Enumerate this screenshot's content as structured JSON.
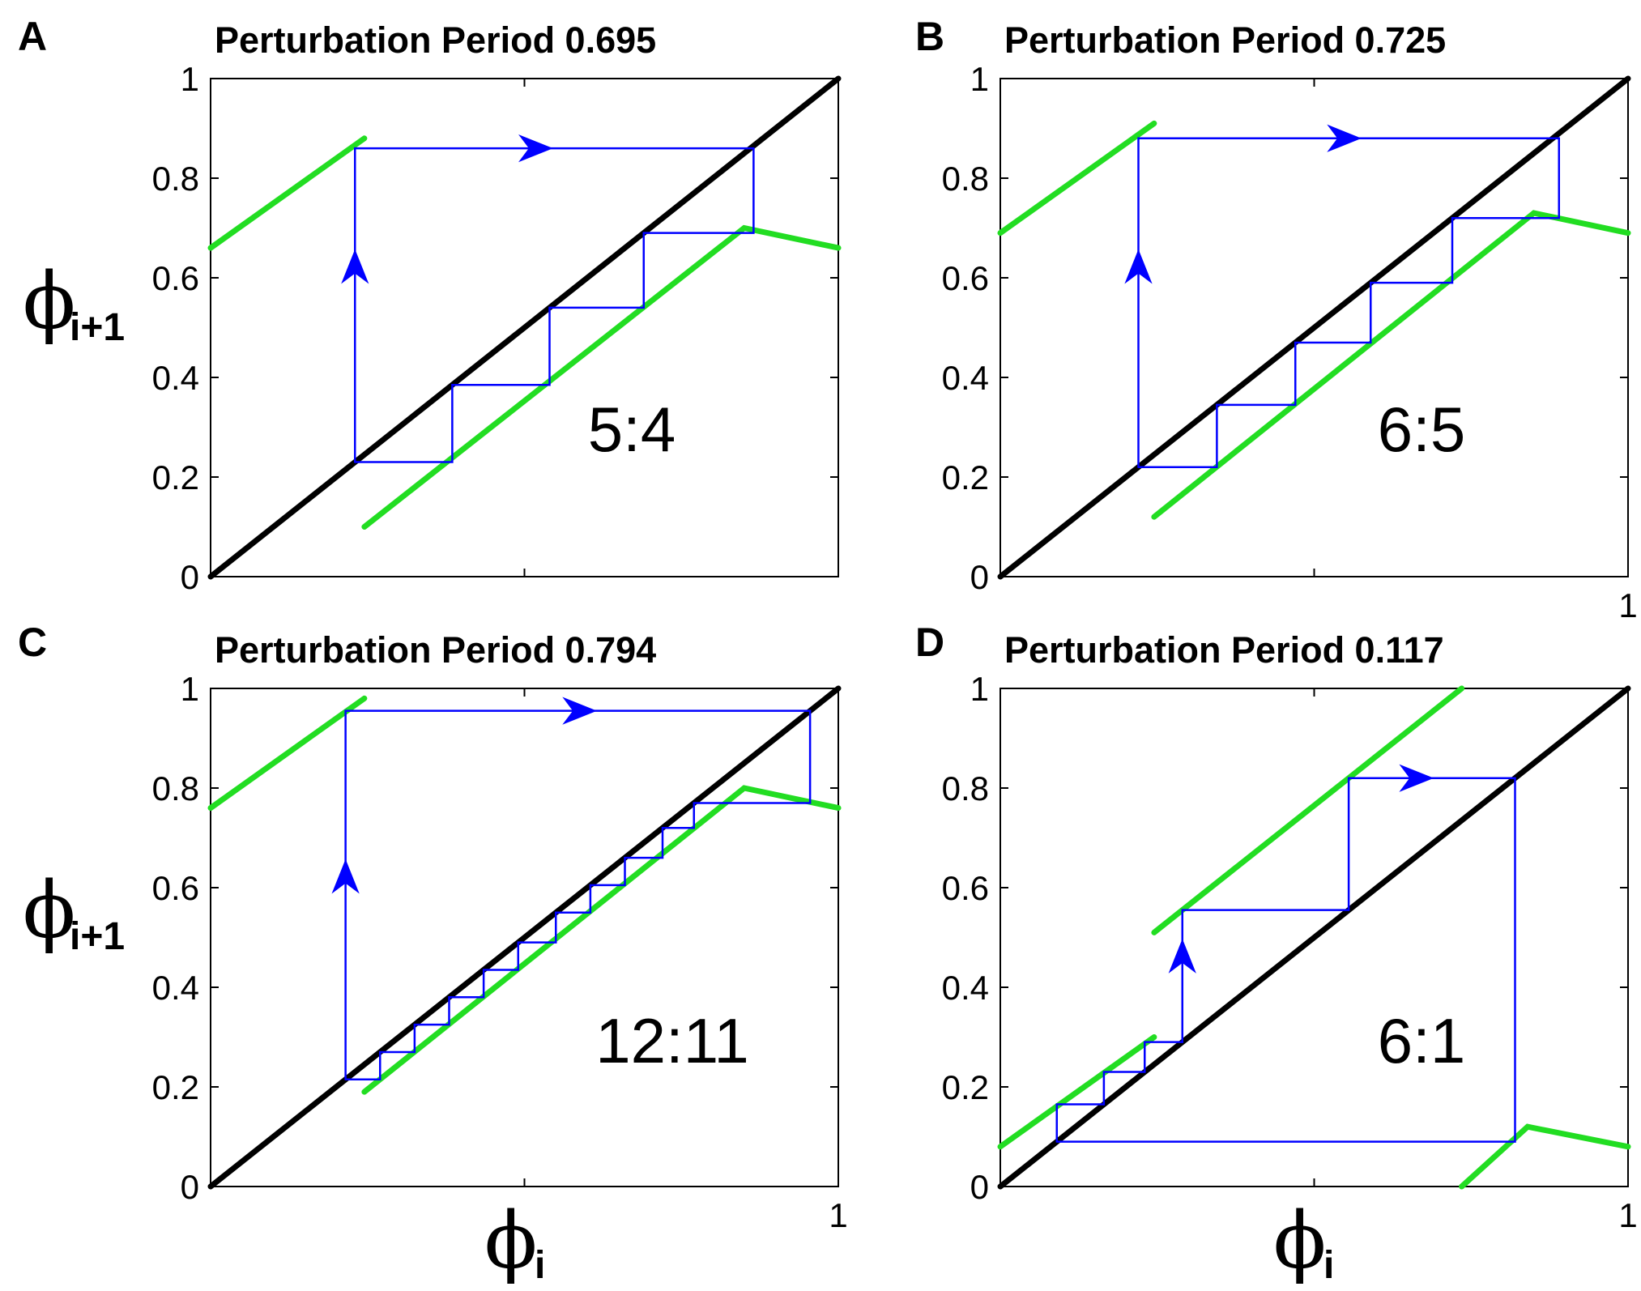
{
  "figure": {
    "ylabel_symbol": "ϕ",
    "ylabel_sub": "i+1",
    "xlabel_symbol": "ϕ",
    "xlabel_sub": "i"
  },
  "chart_data": [
    {
      "type": "line",
      "panel": "A",
      "title": "Perturbation Period 0.695",
      "ratio_label": "5:4",
      "xlim": [
        0,
        1
      ],
      "ylim": [
        0,
        1
      ],
      "y_ticks": [
        "0",
        "0.2",
        "0.4",
        "0.6",
        "0.8",
        "1"
      ],
      "x_tick_label": "",
      "series": [
        {
          "name": "identity",
          "color": "#000000",
          "points": [
            [
              0,
              0
            ],
            [
              1,
              1
            ]
          ]
        },
        {
          "name": "map-left",
          "color": "#22dd22",
          "points": [
            [
              0,
              0.66
            ],
            [
              0.245,
              0.88
            ]
          ]
        },
        {
          "name": "map-right",
          "color": "#22dd22",
          "points": [
            [
              0.245,
              0.1
            ],
            [
              0.85,
              0.7
            ],
            [
              1,
              0.66
            ]
          ]
        },
        {
          "name": "cobweb",
          "color": "#0000ff",
          "points": [
            [
              0.23,
              0.23
            ],
            [
              0.23,
              0.86
            ],
            [
              0.865,
              0.86
            ],
            [
              0.865,
              0.69
            ],
            [
              0.69,
              0.69
            ],
            [
              0.69,
              0.54
            ],
            [
              0.54,
              0.54
            ],
            [
              0.54,
              0.385
            ],
            [
              0.385,
              0.385
            ],
            [
              0.385,
              0.23
            ],
            [
              0.23,
              0.23
            ]
          ],
          "arrows": [
            [
              0.23,
              0.6,
              "up"
            ],
            [
              0.5,
              0.86,
              "right"
            ]
          ]
        }
      ]
    },
    {
      "type": "line",
      "panel": "B",
      "title": "Perturbation Period 0.725",
      "ratio_label": "6:5",
      "xlim": [
        0,
        1
      ],
      "ylim": [
        0,
        1
      ],
      "y_ticks": [
        "0",
        "0.2",
        "0.4",
        "0.6",
        "0.8",
        "1"
      ],
      "x_tick_label": "1",
      "series": [
        {
          "name": "identity",
          "color": "#000000",
          "points": [
            [
              0,
              0
            ],
            [
              1,
              1
            ]
          ]
        },
        {
          "name": "map-left",
          "color": "#22dd22",
          "points": [
            [
              0,
              0.69
            ],
            [
              0.245,
              0.91
            ]
          ]
        },
        {
          "name": "map-right",
          "color": "#22dd22",
          "points": [
            [
              0.245,
              0.12
            ],
            [
              0.85,
              0.73
            ],
            [
              1,
              0.69
            ]
          ]
        },
        {
          "name": "cobweb",
          "color": "#0000ff",
          "points": [
            [
              0.22,
              0.22
            ],
            [
              0.22,
              0.88
            ],
            [
              0.89,
              0.88
            ],
            [
              0.89,
              0.72
            ],
            [
              0.72,
              0.72
            ],
            [
              0.72,
              0.59
            ],
            [
              0.59,
              0.59
            ],
            [
              0.59,
              0.47
            ],
            [
              0.47,
              0.47
            ],
            [
              0.47,
              0.345
            ],
            [
              0.345,
              0.345
            ],
            [
              0.345,
              0.22
            ],
            [
              0.22,
              0.22
            ]
          ],
          "arrows": [
            [
              0.22,
              0.6,
              "up"
            ],
            [
              0.53,
              0.88,
              "right"
            ]
          ]
        }
      ]
    },
    {
      "type": "line",
      "panel": "C",
      "title": "Perturbation Period 0.794",
      "ratio_label": "12:11",
      "xlim": [
        0,
        1
      ],
      "ylim": [
        0,
        1
      ],
      "y_ticks": [
        "0",
        "0.2",
        "0.4",
        "0.6",
        "0.8",
        "1"
      ],
      "x_tick_label": "1",
      "series": [
        {
          "name": "identity",
          "color": "#000000",
          "points": [
            [
              0,
              0
            ],
            [
              1,
              1
            ]
          ]
        },
        {
          "name": "map-left",
          "color": "#22dd22",
          "points": [
            [
              0,
              0.76
            ],
            [
              0.245,
              0.98
            ]
          ]
        },
        {
          "name": "map-right",
          "color": "#22dd22",
          "points": [
            [
              0.245,
              0.19
            ],
            [
              0.85,
              0.8
            ],
            [
              1,
              0.76
            ]
          ]
        },
        {
          "name": "cobweb",
          "color": "#0000ff",
          "points": [
            [
              0.215,
              0.215
            ],
            [
              0.215,
              0.955
            ],
            [
              0.955,
              0.955
            ],
            [
              0.955,
              0.77
            ],
            [
              0.77,
              0.77
            ],
            [
              0.77,
              0.72
            ],
            [
              0.72,
              0.72
            ],
            [
              0.72,
              0.66
            ],
            [
              0.66,
              0.66
            ],
            [
              0.66,
              0.605
            ],
            [
              0.605,
              0.605
            ],
            [
              0.605,
              0.55
            ],
            [
              0.55,
              0.55
            ],
            [
              0.55,
              0.49
            ],
            [
              0.49,
              0.49
            ],
            [
              0.49,
              0.435
            ],
            [
              0.435,
              0.435
            ],
            [
              0.435,
              0.38
            ],
            [
              0.38,
              0.38
            ],
            [
              0.38,
              0.325
            ],
            [
              0.325,
              0.325
            ],
            [
              0.325,
              0.27
            ],
            [
              0.27,
              0.27
            ],
            [
              0.27,
              0.215
            ],
            [
              0.215,
              0.215
            ]
          ],
          "arrows": [
            [
              0.215,
              0.6,
              "up"
            ],
            [
              0.57,
              0.955,
              "right"
            ]
          ]
        }
      ]
    },
    {
      "type": "line",
      "panel": "D",
      "title": "Perturbation Period 0.117",
      "ratio_label": "6:1",
      "xlim": [
        0,
        1
      ],
      "ylim": [
        0,
        1
      ],
      "y_ticks": [
        "0",
        "0.2",
        "0.4",
        "0.6",
        "0.8",
        "1"
      ],
      "x_tick_label": "1",
      "series": [
        {
          "name": "identity",
          "color": "#000000",
          "points": [
            [
              0,
              0
            ],
            [
              1,
              1
            ]
          ]
        },
        {
          "name": "map-lower-left",
          "color": "#22dd22",
          "points": [
            [
              0,
              0.08
            ],
            [
              0.245,
              0.3
            ]
          ]
        },
        {
          "name": "map-upper",
          "color": "#22dd22",
          "points": [
            [
              0.245,
              0.51
            ],
            [
              0.735,
              1.0
            ]
          ]
        },
        {
          "name": "map-right",
          "color": "#22dd22",
          "points": [
            [
              0.735,
              0.0
            ],
            [
              0.84,
              0.12
            ],
            [
              1,
              0.08
            ]
          ]
        },
        {
          "name": "cobweb",
          "color": "#0000ff",
          "points": [
            [
              0.09,
              0.09
            ],
            [
              0.09,
              0.165
            ],
            [
              0.165,
              0.165
            ],
            [
              0.165,
              0.23
            ],
            [
              0.23,
              0.23
            ],
            [
              0.23,
              0.29
            ],
            [
              0.29,
              0.29
            ],
            [
              0.29,
              0.555
            ],
            [
              0.555,
              0.555
            ],
            [
              0.555,
              0.82
            ],
            [
              0.82,
              0.82
            ],
            [
              0.82,
              0.09
            ],
            [
              0.09,
              0.09
            ]
          ],
          "arrows": [
            [
              0.29,
              0.44,
              "up"
            ],
            [
              0.645,
              0.82,
              "right"
            ]
          ]
        }
      ]
    }
  ]
}
